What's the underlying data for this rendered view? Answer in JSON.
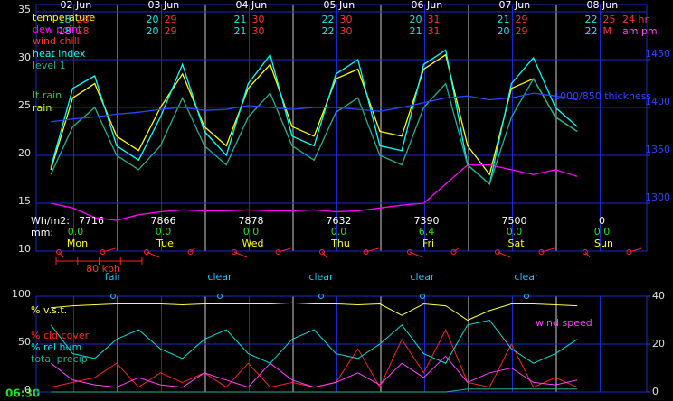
{
  "time": "06:30",
  "chart_data": [
    {
      "type": "line",
      "xlim": [
        -22,
        145
      ],
      "x": [
        -18,
        -12,
        -6,
        0,
        6,
        12,
        18,
        24,
        30,
        36,
        42,
        48,
        54,
        60,
        66,
        72,
        78,
        84,
        90,
        96,
        102,
        108,
        114,
        120,
        126
      ],
      "date_labels": [
        "02 Jun",
        "03 Jun",
        "04 Jun",
        "05 Jun",
        "06 Jun",
        "07 Jun",
        "08 Jun"
      ],
      "day_labels": [
        "Mon",
        "Tue",
        "Wed",
        "Thu",
        "Fri",
        "Sat",
        "Sun"
      ],
      "min_max": [
        {
          "min": [
            18,
            20,
            21,
            22,
            20,
            21,
            22
          ],
          "max": [
            28,
            29,
            30,
            30,
            31,
            29,
            25
          ],
          "label": "24 hr"
        },
        {
          "min": [
            18,
            20,
            21,
            22,
            21,
            20,
            22
          ],
          "max": [
            28,
            29,
            30,
            30,
            31,
            29,
            "M"
          ],
          "label": "am pm"
        }
      ],
      "energy_label": "Wh/m2:",
      "energy": [
        7716,
        7866,
        7878,
        7632,
        7390,
        7500,
        0
      ],
      "rain_label": "mm:",
      "rain_mm": [
        {
          "value": 0,
          "label": "0.0"
        },
        {
          "value": 0,
          "label": "0.0"
        },
        {
          "value": 0,
          "label": "0.0"
        },
        {
          "value": 0,
          "label": "0.0"
        },
        {
          "value": 6.4,
          "label": "6.4"
        },
        {
          "value": 0,
          "label": "0.0"
        },
        {
          "value": 0,
          "label": "0.0"
        }
      ],
      "wind_scale": "80 kph",
      "labels": {
        "wind_chill": "wind chill",
        "lt_rain": "lt.rain",
        "rain": "rain"
      },
      "ylim": [
        10,
        35
      ],
      "yticks": [
        10,
        15,
        20,
        25,
        30,
        35
      ],
      "y2lim": [
        1250,
        1500
      ],
      "y2ticks": [
        1300,
        1350,
        1400,
        1450
      ],
      "grid": true,
      "series": [
        {
          "name": "temperature",
          "color": "#ffff00",
          "values": [
            18.5,
            26,
            27.5,
            22,
            20.5,
            25,
            28.5,
            23,
            21,
            27,
            29.5,
            23,
            22,
            28,
            29,
            22.5,
            22,
            29,
            30.5,
            21,
            18,
            27,
            28,
            24,
            22.5
          ]
        },
        {
          "name": "dew point",
          "color": "#ff00ff",
          "values": [
            15,
            14.5,
            13.5,
            13.2,
            13.8,
            14.1,
            14.3,
            14.2,
            14.2,
            14.3,
            14.2,
            14.2,
            14.3,
            14.1,
            14.2,
            14.5,
            14.8,
            15,
            17,
            19,
            19,
            18.5,
            18,
            18.5,
            17.8
          ]
        },
        {
          "name": "heat index",
          "color": "#00ffff",
          "values": [
            18.7,
            27,
            28.3,
            21,
            19.5,
            24,
            29.5,
            22.5,
            20,
            27.5,
            30.5,
            22,
            21,
            28.5,
            30,
            21,
            20.5,
            29.5,
            31,
            19,
            17,
            27.5,
            30.2,
            25,
            23
          ]
        },
        {
          "name": "level 1",
          "color": "#20b090",
          "values": [
            18,
            23,
            25,
            20,
            18.5,
            21,
            26,
            21,
            19,
            24,
            26.5,
            21,
            19.5,
            24.5,
            26,
            20,
            19,
            25,
            27.5,
            19,
            17,
            24,
            28,
            24,
            22.5
          ]
        },
        {
          "name": "1000/850 thickness",
          "color": "#2848ff",
          "axis": "y2",
          "values": [
            1385,
            1388,
            1390,
            1393,
            1395,
            1398,
            1400,
            1397,
            1398,
            1402,
            1400,
            1398,
            1400,
            1400,
            1398,
            1396,
            1400,
            1405,
            1410,
            1412,
            1408,
            1410,
            1415,
            1412,
            1408
          ]
        }
      ]
    },
    {
      "type": "line",
      "xlim": [
        -22,
        145
      ],
      "x": [
        -18,
        -12,
        -6,
        0,
        6,
        12,
        18,
        24,
        30,
        36,
        42,
        48,
        54,
        60,
        66,
        72,
        78,
        84,
        90,
        96,
        102,
        108,
        114,
        120,
        126
      ],
      "conditions": [
        "fair",
        "clear",
        "clear",
        "clear",
        "clear"
      ],
      "ylim": [
        0,
        100
      ],
      "yticks": [
        0,
        50,
        100
      ],
      "y2lim": [
        0,
        40
      ],
      "y2ticks": [
        0,
        20,
        40
      ],
      "grid": true,
      "series": [
        {
          "name": "% v.s.t.",
          "color": "#ffff40",
          "values": [
            88,
            90,
            91,
            92,
            92,
            92,
            91,
            92,
            92,
            92,
            92,
            93,
            92,
            92,
            91,
            92,
            80,
            92,
            90,
            75,
            85,
            92,
            92,
            91,
            90
          ]
        },
        {
          "name": "% cld cover",
          "color": "#ff2020",
          "values": [
            5,
            10,
            15,
            30,
            5,
            20,
            10,
            20,
            5,
            30,
            5,
            10,
            5,
            10,
            45,
            5,
            55,
            20,
            65,
            10,
            5,
            50,
            5,
            15,
            5
          ]
        },
        {
          "name": "% rel hum",
          "color": "#00e0e0",
          "values": [
            70,
            40,
            35,
            55,
            65,
            45,
            35,
            55,
            65,
            40,
            30,
            55,
            65,
            40,
            35,
            50,
            70,
            40,
            30,
            70,
            75,
            45,
            30,
            40,
            55
          ]
        },
        {
          "name": "total precip",
          "color": "#20b090",
          "values": [
            0,
            0,
            0,
            0,
            0,
            0,
            0,
            0,
            0,
            0,
            0,
            0,
            0,
            0,
            0,
            0,
            0,
            0,
            0,
            3,
            3,
            3,
            3,
            3,
            3
          ]
        },
        {
          "name": "wind speed",
          "color": "#ff40ff",
          "axis": "y2",
          "values": [
            12,
            5,
            3,
            2,
            6,
            3,
            2,
            8,
            5,
            2,
            12,
            5,
            2,
            4,
            8,
            3,
            12,
            6,
            15,
            4,
            8,
            10,
            4,
            3,
            5
          ]
        }
      ]
    }
  ]
}
